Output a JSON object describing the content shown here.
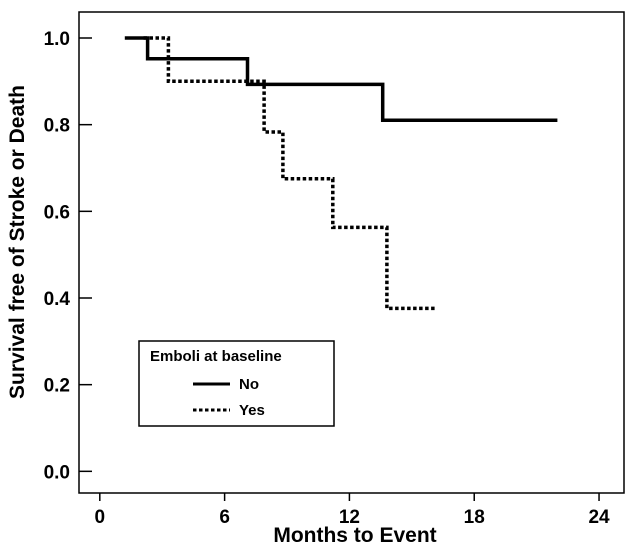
{
  "chart_data": {
    "type": "line",
    "subtype": "kaplan-meier step",
    "title": "",
    "xlabel": "Months to Event",
    "ylabel": "Survival free of Stroke or Death",
    "xlim": [
      -1,
      25.2
    ],
    "ylim": [
      -0.05,
      1.06
    ],
    "xticks": [
      0,
      6,
      12,
      18,
      24
    ],
    "xtick_labels": [
      "0",
      "6",
      "12",
      "18",
      "24"
    ],
    "yticks": [
      0.0,
      0.2,
      0.4,
      0.6,
      0.8,
      1.0
    ],
    "ytick_labels": [
      "0.0",
      "0.2",
      "0.4",
      "0.6",
      "0.8",
      "1.0"
    ],
    "grid": false,
    "legend": {
      "title": "Emboli at baseline",
      "position": "bottom-left"
    },
    "series": [
      {
        "name": "No",
        "style": "solid",
        "color": "#000000",
        "points": [
          [
            1.2,
            1.0
          ],
          [
            2.3,
            1.0
          ],
          [
            2.3,
            0.952
          ],
          [
            7.1,
            0.952
          ],
          [
            7.1,
            0.893
          ],
          [
            13.6,
            0.893
          ],
          [
            13.6,
            0.81
          ],
          [
            22.0,
            0.81
          ]
        ]
      },
      {
        "name": "Yes",
        "style": "dotted",
        "color": "#000000",
        "points": [
          [
            2.1,
            1.0
          ],
          [
            3.3,
            1.0
          ],
          [
            3.3,
            0.9
          ],
          [
            7.9,
            0.9
          ],
          [
            7.9,
            0.783
          ],
          [
            8.8,
            0.783
          ],
          [
            8.8,
            0.675
          ],
          [
            11.2,
            0.675
          ],
          [
            11.2,
            0.563
          ],
          [
            13.8,
            0.563
          ],
          [
            13.8,
            0.376
          ],
          [
            16.2,
            0.376
          ]
        ]
      }
    ]
  }
}
